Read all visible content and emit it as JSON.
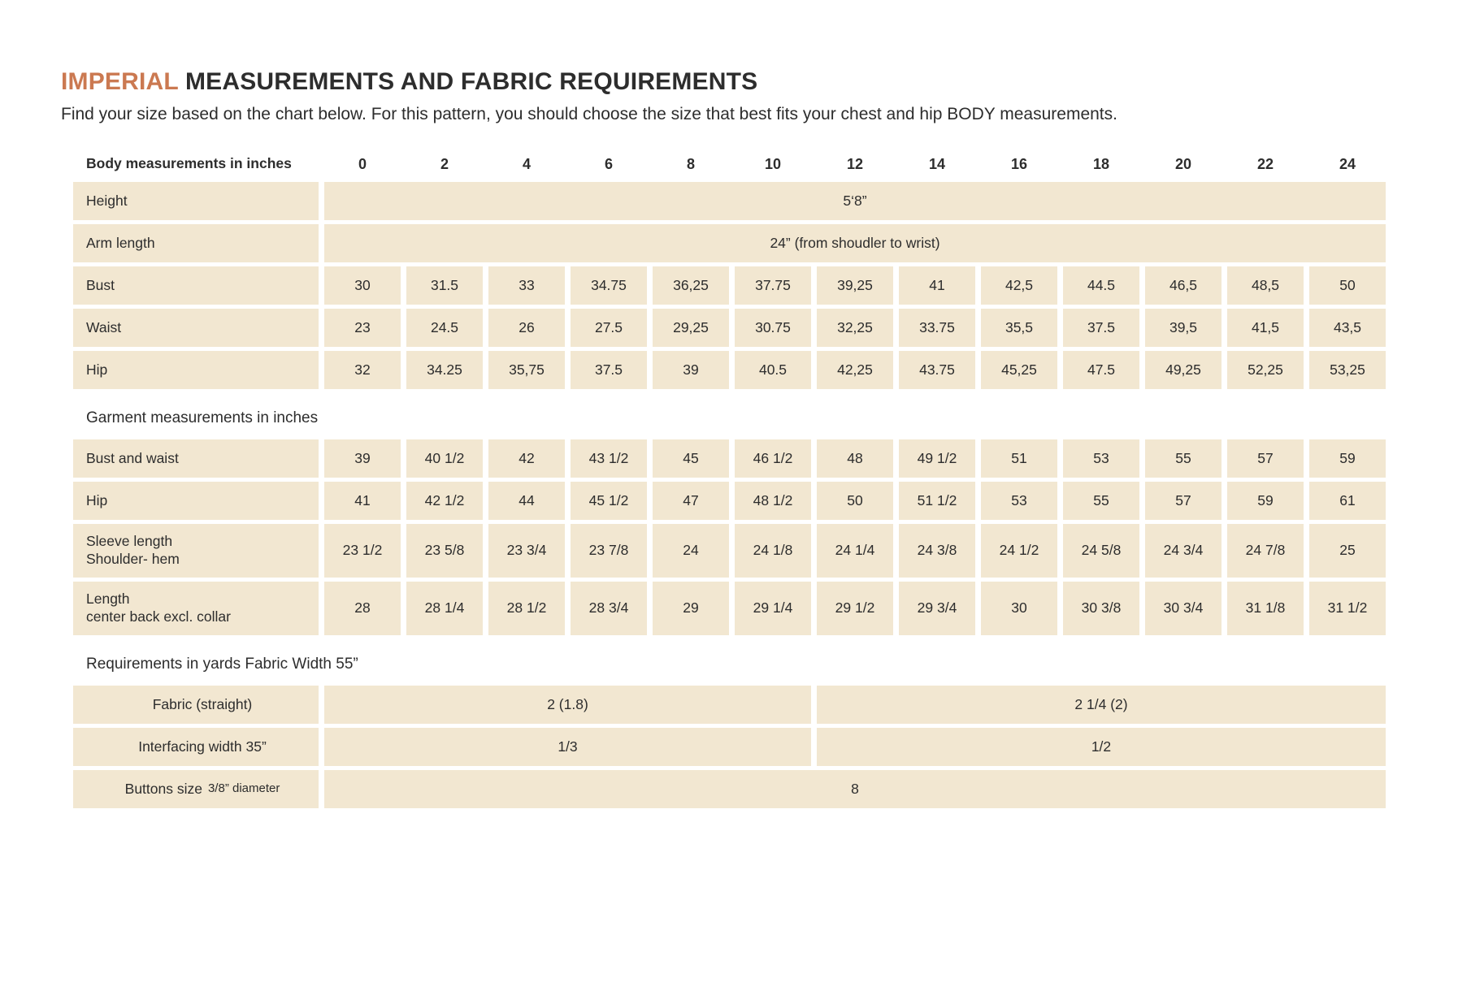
{
  "header": {
    "title_accent": "IMPERIAL",
    "title_rest": " MEASUREMENTS AND FABRIC REQUIREMENTS",
    "subtitle": "Find your size based on the chart below. For this pattern, you should choose the size that best fits your chest and hip BODY measurements."
  },
  "colors": {
    "accent": "#CB7951",
    "cell": "#F2E7D1",
    "text": "#2D2D2D"
  },
  "table": {
    "body_section_label": "Body measurements in inches",
    "sizes": [
      "0",
      "2",
      "4",
      "6",
      "8",
      "10",
      "12",
      "14",
      "16",
      "18",
      "20",
      "22",
      "24"
    ],
    "body_rows": [
      {
        "label_lines": [
          "Height"
        ],
        "span_value": "5‘8”"
      },
      {
        "label_lines": [
          "Arm length"
        ],
        "span_value": "24” (from shoudler to wrist)"
      },
      {
        "label_lines": [
          "Bust"
        ],
        "values": [
          "30",
          "31.5",
          "33",
          "34.75",
          "36,25",
          "37.75",
          "39,25",
          "41",
          "42,5",
          "44.5",
          "46,5",
          "48,5",
          "50"
        ]
      },
      {
        "label_lines": [
          "Waist"
        ],
        "values": [
          "23",
          "24.5",
          "26",
          "27.5",
          "29,25",
          "30.75",
          "32,25",
          "33.75",
          "35,5",
          "37.5",
          "39,5",
          "41,5",
          "43,5"
        ]
      },
      {
        "label_lines": [
          "Hip"
        ],
        "values": [
          "32",
          "34.25",
          "35,75",
          "37.5",
          "39",
          "40.5",
          "42,25",
          "43.75",
          "45,25",
          "47.5",
          "49,25",
          "52,25",
          "53,25"
        ]
      }
    ],
    "garment_section_label": "Garment measurements in inches",
    "garment_rows": [
      {
        "label_lines": [
          "Bust and waist"
        ],
        "values": [
          "39",
          "40 1/2",
          "42",
          "43 1/2",
          "45",
          "46 1/2",
          "48",
          "49 1/2",
          "51",
          "53",
          "55",
          "57",
          "59"
        ]
      },
      {
        "label_lines": [
          "Hip"
        ],
        "values": [
          "41",
          "42 1/2",
          "44",
          "45 1/2",
          "47",
          "48 1/2",
          "50",
          "51 1/2",
          "53",
          "55",
          "57",
          "59",
          "61"
        ]
      },
      {
        "label_lines": [
          "Sleeve length",
          "Shoulder- hem"
        ],
        "values": [
          "23 1/2",
          "23 5/8",
          "23 3/4",
          "23 7/8",
          "24",
          "24 1/8",
          "24 1/4",
          "24 3/8",
          "24 1/2",
          "24 5/8",
          "24 3/4",
          "24 7/8",
          "25"
        ]
      },
      {
        "label_lines": [
          "Length",
          "center back excl. collar"
        ],
        "values": [
          "28",
          "28 1/4",
          "28 1/2",
          "28 3/4",
          "29",
          "29 1/4",
          "29 1/2",
          "29 3/4",
          "30",
          "30 3/8",
          "30 3/4",
          "31 1/8",
          "31 1/2"
        ]
      }
    ],
    "requirements_section_label": "Requirements in yards Fabric Width 55”",
    "requirements_rows": [
      {
        "label": "Fabric (straight)",
        "left_value": "2  (1.8)",
        "right_value": "2 1/4 (2)"
      },
      {
        "label": "Interfacing width 35”",
        "left_value": "1/3",
        "right_value": "1/2"
      },
      {
        "label": "Buttons size",
        "label_note": "3/8” diameter",
        "full_value": "8"
      }
    ]
  }
}
